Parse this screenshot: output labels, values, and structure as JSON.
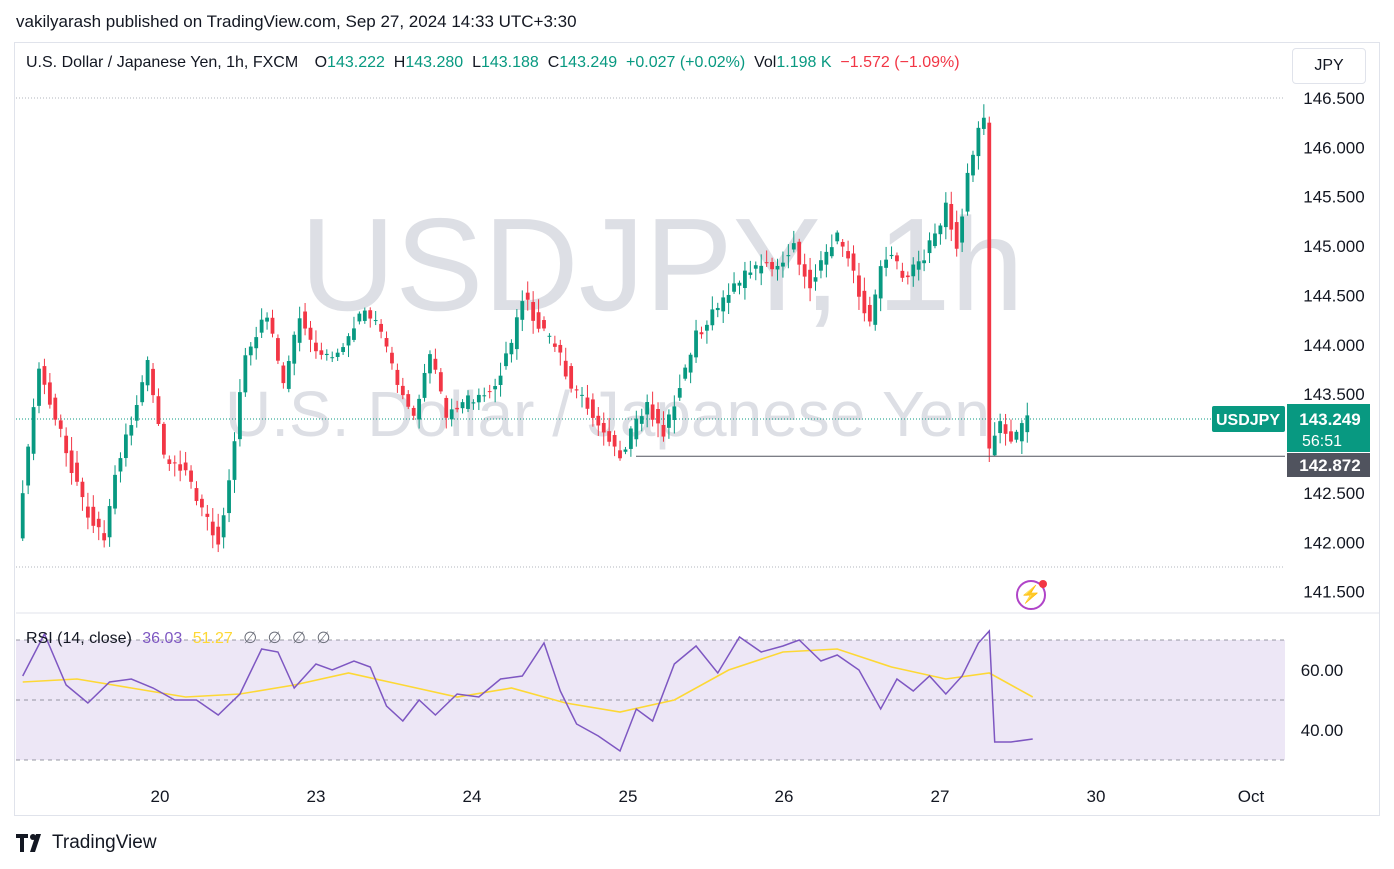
{
  "caption": "vakilyarash published on TradingView.com, Sep 27, 2024 14:33 UTC+3:30",
  "legend": {
    "name": "U.S. Dollar / Japanese Yen, 1h, FXCM",
    "o_label": "O",
    "o_value": "143.222",
    "h_label": "H",
    "h_value": "143.280",
    "l_label": "L",
    "l_value": "143.188",
    "c_label": "C",
    "c_value": "143.249",
    "change": "+0.027 (+0.02%)",
    "vol_label": "Vol",
    "vol_value": "1.198 K",
    "period_change": "−1.572 (−1.09%)"
  },
  "currency_button": "JPY",
  "watermark": {
    "symbol": "USDJPY, 1h",
    "description": "U.S. Dollar / Japanese Yen"
  },
  "price_axis": [
    "146.500",
    "146.000",
    "145.500",
    "145.000",
    "144.500",
    "144.000",
    "143.500",
    "142.500",
    "142.000",
    "141.500"
  ],
  "price_tags": {
    "symbol": "USDJPY",
    "last_price": "143.249",
    "countdown": "56:51",
    "low_line_price": "142.872"
  },
  "rsi": {
    "label": "RSI (14, close)",
    "rsi_value": "36.03",
    "ma_value": "51.27",
    "na_values": [
      "∅",
      "∅",
      "∅",
      "∅"
    ],
    "axis": [
      "60.00",
      "40.00"
    ]
  },
  "time_axis": [
    "20",
    "23",
    "24",
    "25",
    "26",
    "27",
    "30",
    "Oct"
  ],
  "footer": {
    "brand": "TradingView"
  },
  "colors": {
    "up": "#089981",
    "down": "#f23645",
    "rsi": "#7e57c2",
    "rsi_ma": "#fdd835",
    "rsi_band": "#ede7f6"
  },
  "chart_data": {
    "type": "candlestick",
    "symbol": "USDJPY",
    "interval": "1h",
    "ylim": [
      141.5,
      146.6
    ],
    "x_labels": [
      "20",
      "23",
      "24",
      "25",
      "26",
      "27",
      "30",
      "Oct"
    ],
    "path": [
      [
        0,
        142.1
      ],
      [
        4,
        143.8
      ],
      [
        8,
        143.1
      ],
      [
        12,
        142.4
      ],
      [
        16,
        142.0
      ],
      [
        18,
        142.7
      ],
      [
        22,
        143.4
      ],
      [
        24,
        143.8
      ],
      [
        27,
        142.9
      ],
      [
        31,
        142.7
      ],
      [
        35,
        142.2
      ],
      [
        37,
        142.0
      ],
      [
        39,
        142.6
      ],
      [
        42,
        143.9
      ],
      [
        46,
        144.3
      ],
      [
        49,
        143.6
      ],
      [
        52,
        144.3
      ],
      [
        55,
        143.9
      ],
      [
        58,
        143.9
      ],
      [
        61,
        144.1
      ],
      [
        64,
        144.4
      ],
      [
        67,
        144.1
      ],
      [
        70,
        143.6
      ],
      [
        73,
        143.3
      ],
      [
        76,
        143.9
      ],
      [
        79,
        143.3
      ],
      [
        82,
        143.4
      ],
      [
        85,
        143.5
      ],
      [
        88,
        143.6
      ],
      [
        91,
        144.0
      ],
      [
        93,
        144.5
      ],
      [
        96,
        144.2
      ],
      [
        99,
        144.0
      ],
      [
        102,
        143.6
      ],
      [
        105,
        143.4
      ],
      [
        108,
        143.1
      ],
      [
        111,
        142.9
      ],
      [
        113,
        143.1
      ],
      [
        116,
        143.4
      ],
      [
        119,
        143.1
      ],
      [
        122,
        143.6
      ],
      [
        125,
        144.1
      ],
      [
        128,
        144.3
      ],
      [
        131,
        144.5
      ],
      [
        134,
        144.7
      ],
      [
        137,
        144.8
      ],
      [
        140,
        144.8
      ],
      [
        143,
        145.0
      ],
      [
        146,
        144.6
      ],
      [
        149,
        144.9
      ],
      [
        151,
        145.1
      ],
      [
        153,
        144.9
      ],
      [
        155,
        144.5
      ],
      [
        157,
        144.2
      ],
      [
        159,
        144.8
      ],
      [
        161,
        144.9
      ],
      [
        163,
        144.7
      ],
      [
        166,
        144.8
      ],
      [
        169,
        145.1
      ],
      [
        171,
        145.4
      ],
      [
        173,
        145.0
      ],
      [
        175,
        145.7
      ],
      [
        177,
        146.2
      ],
      [
        178,
        146.3
      ],
      [
        179,
        142.9
      ],
      [
        181,
        143.2
      ],
      [
        183,
        143.0
      ],
      [
        186,
        143.249
      ]
    ],
    "low_line": 142.872,
    "last": 143.249,
    "rsi_series": [
      [
        0,
        58
      ],
      [
        4,
        72
      ],
      [
        8,
        55
      ],
      [
        12,
        49
      ],
      [
        16,
        56
      ],
      [
        20,
        57
      ],
      [
        24,
        54
      ],
      [
        28,
        50
      ],
      [
        32,
        50
      ],
      [
        36,
        45
      ],
      [
        40,
        52
      ],
      [
        44,
        67
      ],
      [
        47,
        66
      ],
      [
        50,
        54
      ],
      [
        54,
        62
      ],
      [
        57,
        60
      ],
      [
        61,
        63
      ],
      [
        64,
        61
      ],
      [
        67,
        48
      ],
      [
        70,
        43
      ],
      [
        73,
        50
      ],
      [
        76,
        45
      ],
      [
        80,
        52
      ],
      [
        84,
        51
      ],
      [
        88,
        57
      ],
      [
        92,
        58
      ],
      [
        96,
        69
      ],
      [
        99,
        53
      ],
      [
        102,
        42
      ],
      [
        106,
        38
      ],
      [
        110,
        33
      ],
      [
        113,
        47
      ],
      [
        116,
        43
      ],
      [
        120,
        62
      ],
      [
        124,
        68
      ],
      [
        128,
        59
      ],
      [
        132,
        71
      ],
      [
        136,
        66
      ],
      [
        140,
        68
      ],
      [
        143,
        70
      ],
      [
        147,
        63
      ],
      [
        150,
        65
      ],
      [
        154,
        60
      ],
      [
        158,
        47
      ],
      [
        161,
        57
      ],
      [
        164,
        53
      ],
      [
        167,
        58
      ],
      [
        170,
        52
      ],
      [
        173,
        58
      ],
      [
        176,
        69
      ],
      [
        178,
        73
      ],
      [
        179,
        36
      ],
      [
        182,
        36
      ],
      [
        186,
        37
      ]
    ],
    "rsi_ma_series": [
      [
        0,
        56
      ],
      [
        10,
        57
      ],
      [
        20,
        54
      ],
      [
        30,
        51
      ],
      [
        40,
        52
      ],
      [
        50,
        55
      ],
      [
        60,
        59
      ],
      [
        70,
        55
      ],
      [
        80,
        51
      ],
      [
        90,
        54
      ],
      [
        100,
        49
      ],
      [
        110,
        46
      ],
      [
        120,
        50
      ],
      [
        130,
        60
      ],
      [
        140,
        66
      ],
      [
        150,
        67
      ],
      [
        160,
        61
      ],
      [
        170,
        57
      ],
      [
        178,
        59
      ],
      [
        186,
        51
      ]
    ],
    "rsi_ylim": [
      30,
      75
    ],
    "rsi_bands": [
      70,
      50,
      30
    ]
  }
}
